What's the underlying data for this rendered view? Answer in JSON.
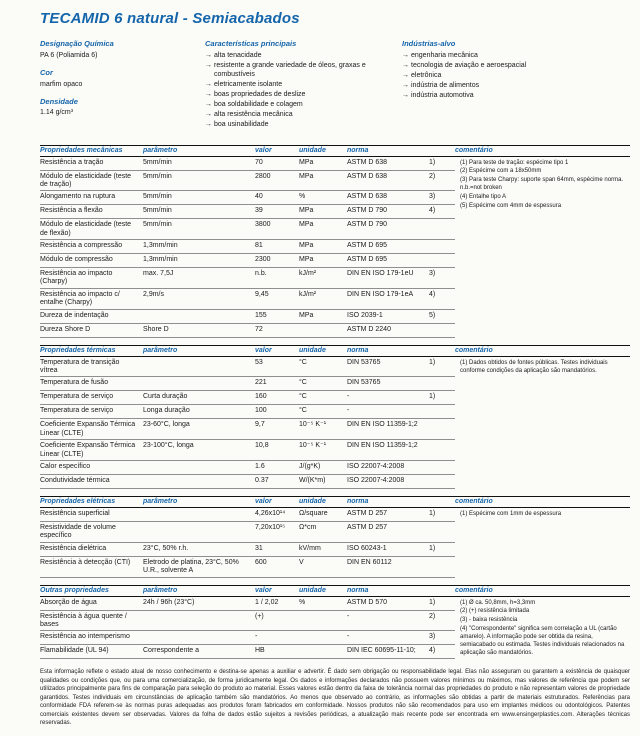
{
  "colors": {
    "accent": "#1565ab"
  },
  "title": "TECAMID 6 natural - Semiacabados",
  "info": {
    "chem_label": "Designação Química",
    "chem_value": "PA 6 (Poliamida 6)",
    "color_label": "Cor",
    "color_value": "marfim opaco",
    "density_label": "Densidade",
    "density_value": "1.14 g/cm³",
    "features_label": "Características principais",
    "features": [
      "alta tenacidade",
      "resistente a grande variedade de óleos, graxas e combustíveis",
      "eletricamente isolante",
      "boas propriedades de deslize",
      "boa soldabilidade e colagem",
      "alta resistência mecânica",
      "boa usinabilidade"
    ],
    "industries_label": "Indústrias-alvo",
    "industries": [
      "engenharia mecânica",
      "tecnologia de aviação e aeroespacial",
      "eletrônica",
      "indústria de alimentos",
      "indústria automotiva"
    ]
  },
  "col_headers": {
    "param": "parâmetro",
    "value": "valor",
    "unit": "unidade",
    "norm": "norma",
    "comment": "comentário"
  },
  "tables": [
    {
      "title": "Propriedades mecânicas",
      "rows": [
        {
          "name": "Resistência a tração",
          "param": "5mm/min",
          "value": "70",
          "unit": "MPa",
          "norm": "ASTM D 638",
          "ref": "1)"
        },
        {
          "name": "Módulo de elasticidade (teste de tração)",
          "param": "5mm/min",
          "value": "2800",
          "unit": "MPa",
          "norm": "ASTM D 638",
          "ref": "2)"
        },
        {
          "name": "Alongamento na ruptura",
          "param": "5mm/min",
          "value": "40",
          "unit": "%",
          "norm": "ASTM D 638",
          "ref": "3)"
        },
        {
          "name": "Resistência a flexão",
          "param": "5mm/min",
          "value": "39",
          "unit": "MPa",
          "norm": "ASTM D 790",
          "ref": "4)"
        },
        {
          "name": "Módulo de elasticidade (teste de flexão)",
          "param": "5mm/min",
          "value": "3800",
          "unit": "MPa",
          "norm": "ASTM D 790",
          "ref": ""
        },
        {
          "name": "Resistência a compressão",
          "param": "1,3mm/min",
          "value": "81",
          "unit": "MPa",
          "norm": "ASTM D 695",
          "ref": ""
        },
        {
          "name": "Módulo de compressão",
          "param": "1,3mm/min",
          "value": "2300",
          "unit": "MPa",
          "norm": "ASTM D 695",
          "ref": ""
        },
        {
          "name": "Resistência ao impacto (Charpy)",
          "param": "max. 7,5J",
          "value": "n.b.",
          "unit": "kJ/m²",
          "norm": "DIN EN ISO 179-1eU",
          "ref": "3)"
        },
        {
          "name": "Resistência ao impacto c/ entalhe (Charpy)",
          "param": "2,9m/s",
          "value": "9,45",
          "unit": "kJ/m²",
          "norm": "DIN EN ISO 179-1eA",
          "ref": "4)"
        },
        {
          "name": "Dureza de indentação",
          "param": "",
          "value": "155",
          "unit": "MPa",
          "norm": "ISO 2039-1",
          "ref": "5)"
        },
        {
          "name": "Dureza Shore D",
          "param": "Shore D",
          "value": "72",
          "unit": "",
          "norm": "ASTM D 2240",
          "ref": ""
        }
      ],
      "comments": [
        "(1) Para teste de tração: espécime tipo 1",
        "(2) Espécime com a 18x50mm",
        "(3) Para teste Charpy: suporte span 64mm, espécime norma. n.b.=not broken",
        "(4) Entalhe tipo A",
        "(5) Espécime com 4mm de espessura"
      ]
    },
    {
      "title": "Propriedades térmicas",
      "rows": [
        {
          "name": "Temperatura de transição vítrea",
          "param": "",
          "value": "53",
          "unit": "°C",
          "norm": "DIN 53765",
          "ref": "1)"
        },
        {
          "name": "Temperatura de fusão",
          "param": "",
          "value": "221",
          "unit": "°C",
          "norm": "DIN 53765",
          "ref": ""
        },
        {
          "name": "Temperatura de serviço",
          "param": "Curta duração",
          "value": "160",
          "unit": "°C",
          "norm": "-",
          "ref": "1)"
        },
        {
          "name": "Temperatura de serviço",
          "param": "Longa duração",
          "value": "100",
          "unit": "°C",
          "norm": "-",
          "ref": ""
        },
        {
          "name": "Coeficiente Expansão Térmica Linear (CLTE)",
          "param": "23-60°C, longa",
          "value": "9,7",
          "unit": "10⁻⁵ K⁻¹",
          "norm": "DIN EN ISO 11359-1;2",
          "ref": ""
        },
        {
          "name": "Coeficiente Expansão Térmica Linear (CLTE)",
          "param": "23-100°C, longa",
          "value": "10,8",
          "unit": "10⁻⁵ K⁻¹",
          "norm": "DIN EN ISO 11359-1;2",
          "ref": ""
        },
        {
          "name": "Calor específico",
          "param": "",
          "value": "1.6",
          "unit": "J/(g*K)",
          "norm": "ISO 22007-4:2008",
          "ref": ""
        },
        {
          "name": "Condutividade térmica",
          "param": "",
          "value": "0.37",
          "unit": "W/(K*m)",
          "norm": "ISO 22007-4:2008",
          "ref": ""
        }
      ],
      "comments": [
        "(1) Dados obtidos de fontes públicas. Testes individuais conforme condições da aplicação são mandatórios."
      ]
    },
    {
      "title": "Propriedades elétricas",
      "rows": [
        {
          "name": "Resistência superficial",
          "param": "",
          "value": "4,26x10¹⁴",
          "unit": "Ω/square",
          "norm": "ASTM D 257",
          "ref": "1)"
        },
        {
          "name": "Resistividade de volume específico",
          "param": "",
          "value": "7,20x10¹⁵",
          "unit": "Ω*cm",
          "norm": "ASTM D 257",
          "ref": ""
        },
        {
          "name": "Resistência dielétrica",
          "param": "23°C, 50% r.h.",
          "value": "31",
          "unit": "kV/mm",
          "norm": "ISO 60243-1",
          "ref": "1)"
        },
        {
          "name": "Resistência à detecção (CTI)",
          "param": "Eletrodo de platina, 23°C, 50% U.R., solvente A",
          "value": "600",
          "unit": "V",
          "norm": "DIN EN 60112",
          "ref": ""
        }
      ],
      "comments": [
        "(1) Espécime com 1mm de espessura"
      ]
    },
    {
      "title": "Outras propriedades",
      "rows": [
        {
          "name": "Absorção de água",
          "param": "24h / 96h (23°C)",
          "value": "1 / 2,02",
          "unit": "%",
          "norm": "ASTM D 570",
          "ref": "1)"
        },
        {
          "name": "Resistência à água quente / bases",
          "param": "",
          "value": "(+)",
          "unit": "",
          "norm": "-",
          "ref": "2)"
        },
        {
          "name": "Resistência ao intemperismo",
          "param": "",
          "value": "-",
          "unit": "",
          "norm": "-",
          "ref": "3)"
        },
        {
          "name": "Flamabilidade (UL 94)",
          "param": "Correspondente a",
          "value": "HB",
          "unit": "",
          "norm": "DIN IEC 60695-11-10;",
          "ref": "4)"
        }
      ],
      "comments": [
        "(1) Ø ca. 50,8mm, h=3,3mm",
        "(2) (+) resistência limitada",
        "(3) - baixa resistência",
        "(4) \"Correspondente\" significa sem correlação a UL (cartão amarelo). A informação pode ser obtida da resina, semiacabado ou estimada. Testes individuais relacionados na aplicação são mandatórios."
      ]
    }
  ],
  "footer": "Esta informação reflete o estado atual de nosso conhecimento e destina-se apenas a auxiliar e advertir. É dado sem obrigação ou responsabilidade legal. Elas não asseguram ou garantem a existência de quaisquer qualidades ou condições que, ou para uma comercialização, de forma juridicamente legal. Os dados e informações declarados não possuem valores mínimos ou máximos, mas valores de referência que podem ser utilizados principalmente para fins de comparação para seleção do produto ao material. Esses valores estão dentro da faixa de tolerância normal das propriedades do produto e não representam valores de propriedade garantidos. Testes individuais em circunstâncias de aplicação também são mandatórios. Ao menos que observado ao contrário, as informações são obtidas a partir de materiais estruturados. Referências para conformidade FDA referem-se às normas puras adequadas aos produtos foram fabricados em conformidade. Nossos produtos não são recomendados para uso em implantes médicos ou odontológicos. Patentes comerciais existentes devem ser observadas. Valores da folha de dados estão sujeitos a revisões periódicas, a atualização mais recente pode ser encontrada em www.ensingerplastics.com. Alterações técnicas reservadas."
}
